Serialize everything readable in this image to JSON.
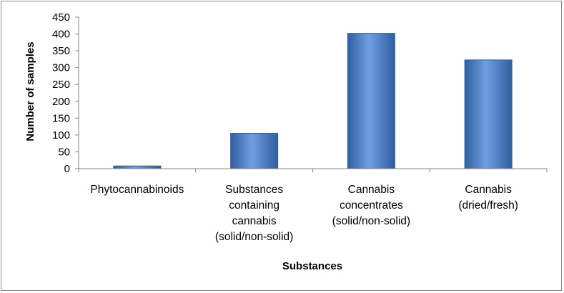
{
  "chart_data": {
    "type": "bar",
    "title": "",
    "xlabel": "Substances",
    "ylabel": "Number of samples",
    "categories": [
      "Phytocannabinoids",
      "Substances containing cannabis (solid/non-solid)",
      "Cannabis concentrates (solid/non-solid)",
      "Cannabis (dried/fresh)"
    ],
    "category_label_lines": [
      [
        "Phytocannabinoids"
      ],
      [
        "Substances",
        "containing",
        "cannabis",
        "(solid/non-solid)"
      ],
      [
        "Cannabis",
        "concentrates",
        "(solid/non-solid)"
      ],
      [
        "Cannabis",
        "(dried/fresh)"
      ]
    ],
    "values": [
      8,
      105,
      402,
      323
    ],
    "ylim": [
      0,
      450
    ],
    "yticks": [
      "0",
      "50",
      "100",
      "150",
      "200",
      "250",
      "300",
      "350",
      "400",
      "450"
    ],
    "grid": false,
    "legend": "none",
    "bar_color": "#4a7fc9",
    "bar_color_dark": "#2f5f9f",
    "bar_color_light": "#6f9fe0"
  }
}
